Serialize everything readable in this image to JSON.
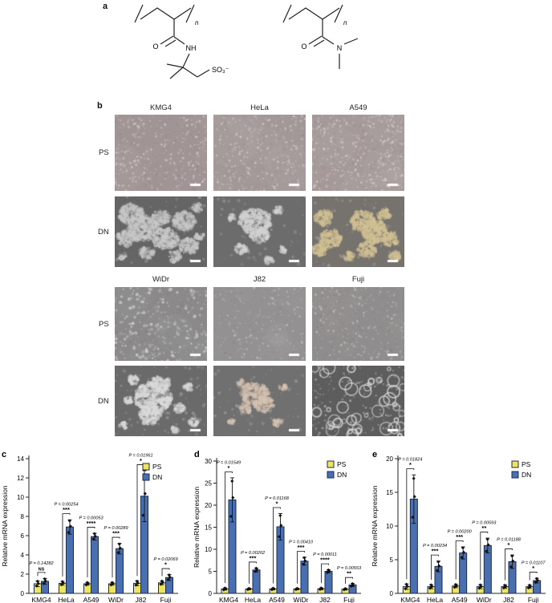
{
  "panel_a": {
    "label": "a",
    "left_structure": {
      "carbonyl_o": "O",
      "amide_nh": "NH",
      "sulfonate": "SO₃⁻",
      "repeat_n": "n"
    },
    "right_structure": {
      "carbonyl_o": "O",
      "amine_n": "N",
      "repeat_n": "n"
    }
  },
  "panel_b": {
    "label": "b",
    "row_labels": [
      "PS",
      "DN"
    ],
    "groups": [
      {
        "cell_lines": [
          "KMG4",
          "HeLa",
          "A549"
        ]
      },
      {
        "cell_lines": [
          "WiDr",
          "J82",
          "Fuji"
        ]
      }
    ]
  },
  "chart_data": [
    {
      "type": "bar",
      "panel": "c",
      "title": "",
      "xlabel": "",
      "ylabel": "Relative mRNA expression",
      "ylim": [
        0,
        14
      ],
      "yticks": [
        0,
        2,
        4,
        6,
        8,
        10,
        12,
        14
      ],
      "categories": [
        "KMG4",
        "HeLa",
        "A549",
        "WiDr",
        "J82",
        "Fuji"
      ],
      "legend": [
        "PS",
        "DN"
      ],
      "legend_position": "top-right",
      "series": [
        {
          "name": "PS",
          "color": "#eee45e",
          "values": [
            1.0,
            1.05,
            1.0,
            1.0,
            1.05,
            1.1
          ],
          "errors": [
            0.3,
            0.2,
            0.15,
            0.15,
            0.25,
            0.2
          ]
        },
        {
          "name": "DN",
          "color": "#4a6fae",
          "values": [
            1.25,
            6.9,
            5.9,
            4.65,
            10.1,
            1.65
          ],
          "errors": [
            0.3,
            0.75,
            0.35,
            0.55,
            2.65,
            0.3
          ]
        }
      ],
      "annotations": [
        {
          "p": "P = 0.14282",
          "sig": "NS"
        },
        {
          "p": "P = 0.00254",
          "sig": "***"
        },
        {
          "p": "P = 0.00053",
          "sig": "****"
        },
        {
          "p": "P = 0.00289",
          "sig": "***"
        },
        {
          "p": "P = 0.01961",
          "sig": "*"
        },
        {
          "p": "P = 0.02069",
          "sig": "*"
        }
      ]
    },
    {
      "type": "bar",
      "panel": "d",
      "title": "",
      "xlabel": "",
      "ylabel": "Relative mRNA expression",
      "ylim": [
        0,
        30
      ],
      "yticks": [
        0,
        5,
        10,
        15,
        20,
        25,
        30
      ],
      "categories": [
        "KMG4",
        "HeLa",
        "A549",
        "WiDr",
        "J82",
        "Fuji"
      ],
      "legend": [
        "PS",
        "DN"
      ],
      "legend_position": "top-right",
      "series": [
        {
          "name": "PS",
          "color": "#eee45e",
          "values": [
            1.0,
            1.0,
            1.0,
            1.0,
            1.05,
            0.95
          ],
          "errors": [
            0.25,
            0.15,
            0.2,
            0.15,
            0.2,
            0.15
          ]
        },
        {
          "name": "DN",
          "color": "#4a6fae",
          "values": [
            21.2,
            5.3,
            15.1,
            7.3,
            5.0,
            1.9
          ],
          "errors": [
            5.0,
            0.45,
            3.0,
            0.9,
            0.35,
            0.35
          ]
        }
      ],
      "annotations": [
        {
          "p": "P = 0.01549",
          "sig": "*"
        },
        {
          "p": "P = 0.00202",
          "sig": "***"
        },
        {
          "p": "P = 0.01168",
          "sig": "*"
        },
        {
          "p": "P = 0.00410",
          "sig": "***"
        },
        {
          "p": "P = 0.00011",
          "sig": "****"
        },
        {
          "p": "P = 0.00553",
          "sig": "**"
        }
      ]
    },
    {
      "type": "bar",
      "panel": "e",
      "title": "",
      "xlabel": "",
      "ylabel": "Relative mRNA expression",
      "ylim": [
        0,
        20
      ],
      "yticks": [
        0,
        5,
        10,
        15,
        20
      ],
      "categories": [
        "KMG4",
        "HeLa",
        "A549",
        "WiDr",
        "J82",
        "Fuji"
      ],
      "legend": [
        "PS",
        "DN"
      ],
      "legend_position": "top-right",
      "series": [
        {
          "name": "PS",
          "color": "#eee45e",
          "values": [
            1.0,
            1.0,
            1.1,
            1.0,
            1.0,
            1.0
          ],
          "errors": [
            0.4,
            0.3,
            0.25,
            0.3,
            0.25,
            0.25
          ]
        },
        {
          "name": "DN",
          "color": "#4a6fae",
          "values": [
            14.0,
            4.0,
            6.0,
            7.1,
            4.7,
            1.9
          ],
          "errors": [
            3.6,
            0.8,
            0.9,
            1.1,
            1.0,
            0.35
          ]
        }
      ],
      "annotations": [
        {
          "p": "P = 0.01824",
          "sig": "*"
        },
        {
          "p": "P = 0.00234",
          "sig": "***"
        },
        {
          "p": "P = 0.00200",
          "sig": "***"
        },
        {
          "p": "P = 0.00593",
          "sig": "**"
        },
        {
          "p": "P = 0.01188",
          "sig": "*"
        },
        {
          "p": "P = 0.01107",
          "sig": "*"
        }
      ]
    }
  ],
  "style": {
    "bar_border": "#1b2b4d",
    "axis_color": "#222",
    "ps_color": "#eee45e",
    "dn_color": "#4a6fae"
  }
}
